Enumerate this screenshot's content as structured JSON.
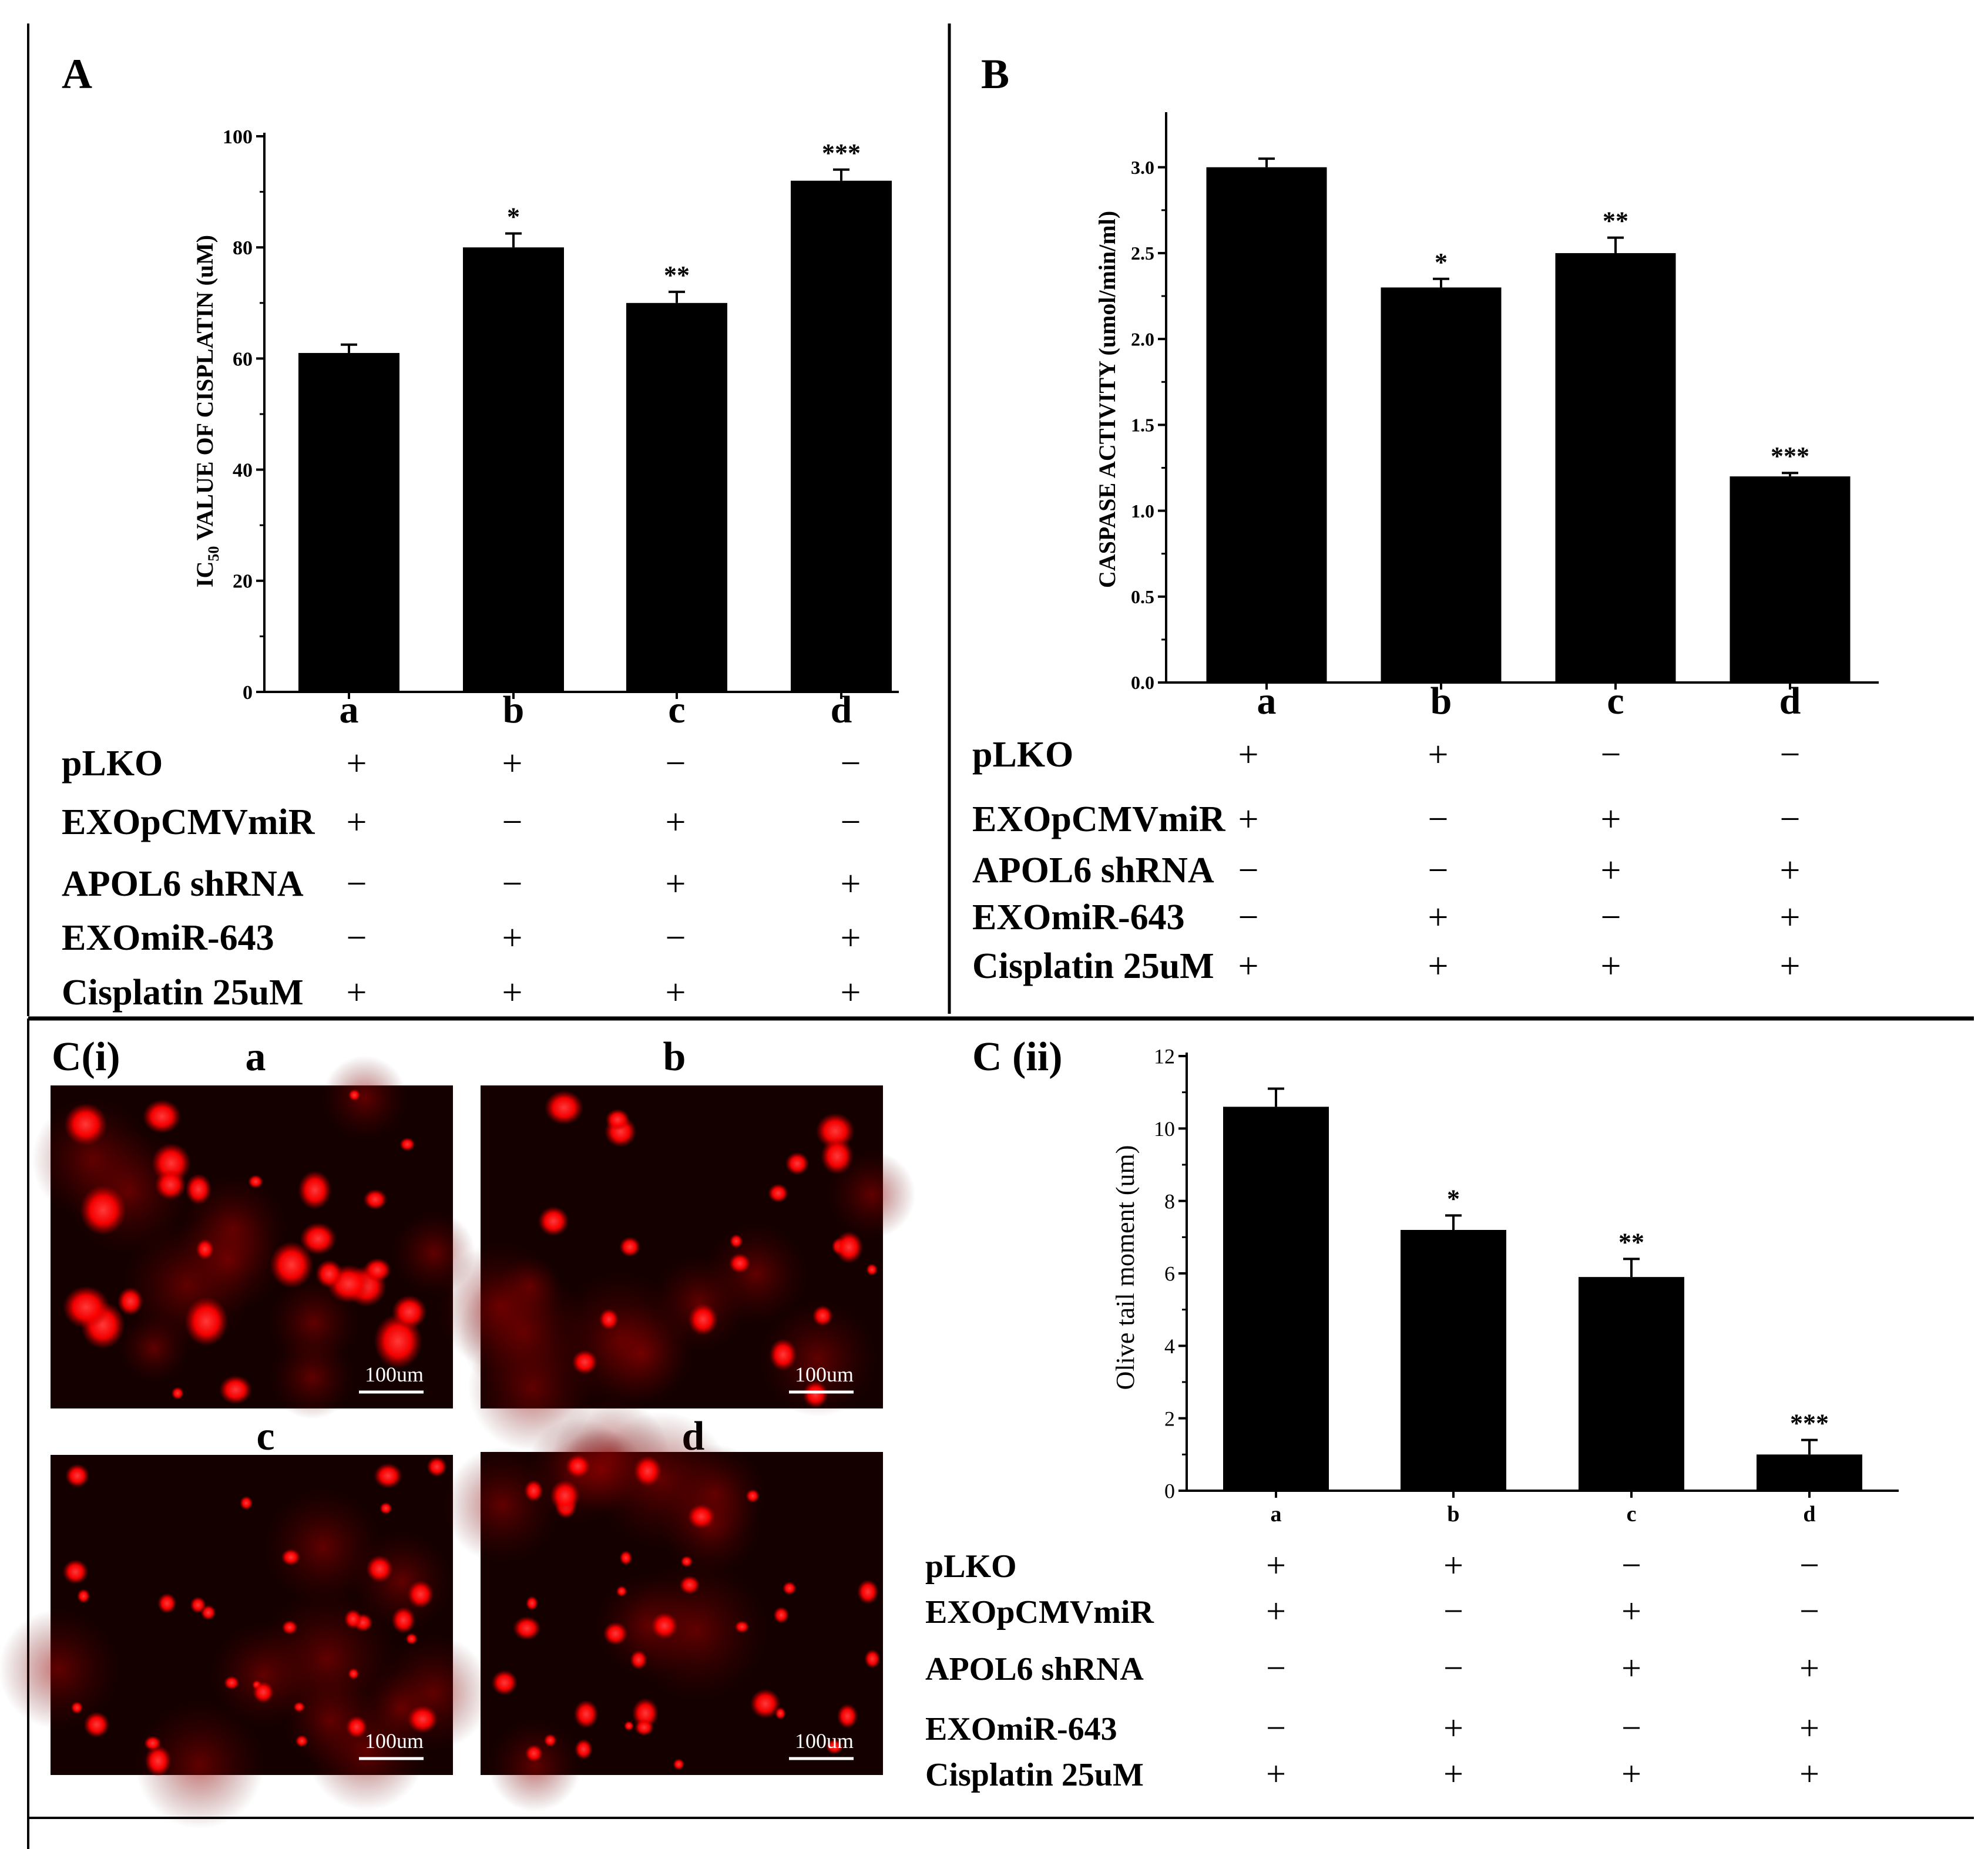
{
  "panels": {
    "A": {
      "label": "A",
      "chart_data": {
        "type": "bar",
        "ylabel_main": "IC",
        "ylabel_sub": "50",
        "ylabel_rest": " VALUE OF CISPLATIN (uM)",
        "ylim": [
          0,
          100
        ],
        "yticks": [
          0,
          20,
          40,
          60,
          80,
          100
        ],
        "categories": [
          "a",
          "b",
          "c",
          "d"
        ],
        "values": [
          61,
          80,
          70,
          92
        ],
        "errors": [
          1.5,
          2.5,
          2,
          2
        ],
        "significance": [
          "",
          "*",
          "**",
          "***"
        ]
      },
      "treatments": [
        {
          "label": "pLKO",
          "signs": [
            "+",
            "+",
            "−",
            "−"
          ]
        },
        {
          "label": "EXOpCMVmiR",
          "signs": [
            "+",
            "−",
            "+",
            "−"
          ]
        },
        {
          "label": "APOL6 shRNA",
          "signs": [
            "−",
            "−",
            "+",
            "+"
          ]
        },
        {
          "label": "EXOmiR-643",
          "signs": [
            "−",
            "+",
            "−",
            "+"
          ]
        },
        {
          "label": "Cisplatin 25uM",
          "signs": [
            "+",
            "+",
            "+",
            "+"
          ]
        }
      ]
    },
    "B": {
      "label": "B",
      "chart_data": {
        "type": "bar",
        "ylabel": "CASPASE ACTIVITY (umol/min/ml)",
        "ylim": [
          0,
          3.3
        ],
        "yticks": [
          "0.0",
          "0.5",
          "1.0",
          "1.5",
          "2.0",
          "2.5",
          "3.0"
        ],
        "categories": [
          "a",
          "b",
          "c",
          "d"
        ],
        "values": [
          3.0,
          2.3,
          2.5,
          1.2
        ],
        "errors": [
          0.05,
          0.05,
          0.09,
          0.02
        ],
        "significance": [
          "",
          "*",
          "**",
          "***"
        ]
      },
      "treatments": [
        {
          "label": "pLKO",
          "signs": [
            "+",
            "+",
            "−",
            "−"
          ]
        },
        {
          "label": "EXOpCMVmiR",
          "signs": [
            "+",
            "−",
            "+",
            "−"
          ]
        },
        {
          "label": "APOL6 shRNA",
          "signs": [
            "−",
            "−",
            "+",
            "+"
          ]
        },
        {
          "label": "EXOmiR-643",
          "signs": [
            "−",
            "+",
            "−",
            "+"
          ]
        },
        {
          "label": "Cisplatin 25uM",
          "signs": [
            "+",
            "+",
            "+",
            "+"
          ]
        }
      ]
    },
    "Ci": {
      "label": "C(i)",
      "images": [
        {
          "label": "a",
          "scale": "100um"
        },
        {
          "label": "b",
          "scale": "100um"
        },
        {
          "label": "c",
          "scale": "100um"
        },
        {
          "label": "d",
          "scale": "100um"
        }
      ]
    },
    "Cii": {
      "label": "C (ii)",
      "chart_data": {
        "type": "bar",
        "ylabel": "Olive tail moment (um)",
        "ylim": [
          0,
          12
        ],
        "yticks": [
          0,
          2,
          4,
          6,
          8,
          10,
          12
        ],
        "categories": [
          "a",
          "b",
          "c",
          "d"
        ],
        "values": [
          10.6,
          7.2,
          5.9,
          1.0
        ],
        "errors": [
          0.5,
          0.4,
          0.5,
          0.4
        ],
        "significance": [
          "",
          "*",
          "**",
          "***"
        ]
      },
      "treatments": [
        {
          "label": "pLKO",
          "signs": [
            "+",
            "+",
            "−",
            "−"
          ]
        },
        {
          "label": "EXOpCMVmiR",
          "signs": [
            "+",
            "−",
            "+",
            "−"
          ]
        },
        {
          "label": "APOL6 shRNA",
          "signs": [
            "−",
            "−",
            "+",
            "+"
          ]
        },
        {
          "label": "EXOmiR-643",
          "signs": [
            "−",
            "+",
            "−",
            "+"
          ]
        },
        {
          "label": "Cisplatin 25uM",
          "signs": [
            "+",
            "+",
            "+",
            "+"
          ]
        }
      ]
    }
  },
  "colors": {
    "bar": "#000000",
    "axis": "#222222",
    "micrograph_bg": "#150000",
    "cell": "#ff1a1a"
  }
}
